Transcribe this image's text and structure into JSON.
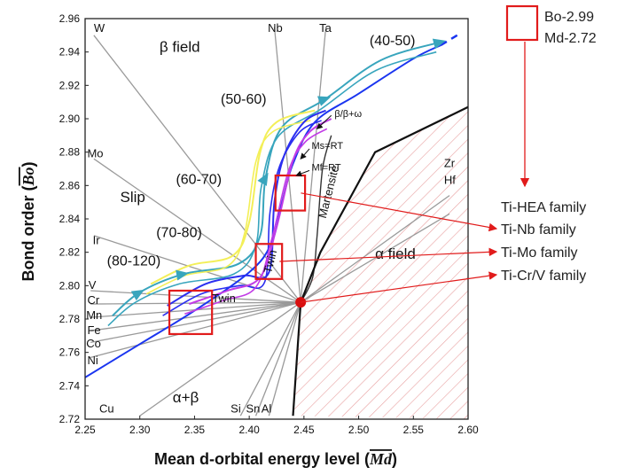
{
  "chart_data": {
    "type": "line",
    "xlabel_main": "Mean d-orbital energy level (",
    "xlabel_sym": "Md",
    "xlabel_close": ")",
    "ylabel_main": "Bond order (",
    "ylabel_sym": "Bo",
    "ylabel_close": ")",
    "xlim": [
      2.25,
      2.6
    ],
    "ylim": [
      2.72,
      2.96
    ],
    "x_ticks": [
      "2.25",
      "2.30",
      "2.35",
      "2.40",
      "2.45",
      "2.50",
      "2.55",
      "2.60"
    ],
    "y_ticks": [
      "2.72",
      "2.74",
      "2.76",
      "2.78",
      "2.80",
      "2.82",
      "2.84",
      "2.86",
      "2.88",
      "2.90",
      "2.92",
      "2.94",
      "2.96"
    ],
    "hub_point": {
      "x": 2.447,
      "y": 2.79
    },
    "element_lines": [
      {
        "name": "W",
        "x": 2.258,
        "y": 2.95
      },
      {
        "name": "Mo",
        "x": 2.258,
        "y": 2.876
      },
      {
        "name": "Ir",
        "x": 2.258,
        "y": 2.83
      },
      {
        "name": "V",
        "x": 2.255,
        "y": 2.797
      },
      {
        "name": "Cr",
        "x": 2.255,
        "y": 2.789
      },
      {
        "name": "Mn",
        "x": 2.255,
        "y": 2.781
      },
      {
        "name": "Fe",
        "x": 2.255,
        "y": 2.773
      },
      {
        "name": "Co",
        "x": 2.255,
        "y": 2.766
      },
      {
        "name": "Ni",
        "x": 2.255,
        "y": 2.757
      },
      {
        "name": "Cu",
        "x": 2.3,
        "y": 2.722
      },
      {
        "name": "Si",
        "x": 2.392,
        "y": 2.722
      },
      {
        "name": "Sn",
        "x": 2.406,
        "y": 2.722
      },
      {
        "name": "Al",
        "x": 2.418,
        "y": 2.722
      },
      {
        "name": "Nb",
        "x": 2.423,
        "y": 2.955
      },
      {
        "name": "Ta",
        "x": 2.47,
        "y": 2.955
      },
      {
        "name": "Zr",
        "x": 2.583,
        "y": 2.854
      },
      {
        "name": "Hf",
        "x": 2.583,
        "y": 2.843
      }
    ],
    "element_labels": [
      {
        "name": "W",
        "x": 2.258,
        "y": 2.952
      },
      {
        "name": "Mo",
        "x": 2.252,
        "y": 2.877
      },
      {
        "name": "Ir",
        "x": 2.257,
        "y": 2.825
      },
      {
        "name": "V",
        "x": 2.253,
        "y": 2.798
      },
      {
        "name": "Cr",
        "x": 2.252,
        "y": 2.789
      },
      {
        "name": "Mn",
        "x": 2.251,
        "y": 2.78
      },
      {
        "name": "Fe",
        "x": 2.252,
        "y": 2.771
      },
      {
        "name": "Co",
        "x": 2.251,
        "y": 2.763
      },
      {
        "name": "Ni",
        "x": 2.252,
        "y": 2.753
      },
      {
        "name": "Cu",
        "x": 2.263,
        "y": 2.724
      },
      {
        "name": "Si",
        "x": 2.383,
        "y": 2.724
      },
      {
        "name": "Sn",
        "x": 2.397,
        "y": 2.724
      },
      {
        "name": "Al",
        "x": 2.411,
        "y": 2.724
      },
      {
        "name": "Nb",
        "x": 2.417,
        "y": 2.952
      },
      {
        "name": "Ta",
        "x": 2.464,
        "y": 2.952
      },
      {
        "name": "Zr",
        "x": 2.578,
        "y": 2.871
      },
      {
        "name": "Hf",
        "x": 2.578,
        "y": 2.861
      }
    ],
    "beta_boundary": [
      [
        2.25,
        2.745
      ],
      [
        2.3,
        2.765
      ],
      [
        2.35,
        2.785
      ],
      [
        2.4,
        2.808
      ],
      [
        2.42,
        2.825
      ],
      [
        2.43,
        2.85
      ],
      [
        2.44,
        2.873
      ],
      [
        2.46,
        2.898
      ],
      [
        2.5,
        2.915
      ],
      [
        2.55,
        2.936
      ],
      [
        2.575,
        2.944
      ]
    ],
    "beta_boundary_dashed": [
      [
        2.575,
        2.944
      ],
      [
        2.59,
        2.95
      ]
    ],
    "martensite_curve": [
      [
        2.447,
        2.79
      ],
      [
        2.458,
        2.805
      ],
      [
        2.462,
        2.83
      ],
      [
        2.467,
        2.87
      ],
      [
        2.475,
        2.89
      ]
    ],
    "alpha_boundary": [
      [
        2.44,
        2.722
      ],
      [
        2.447,
        2.79
      ],
      [
        2.465,
        2.82
      ],
      [
        2.5,
        2.862
      ],
      [
        2.515,
        2.88
      ],
      [
        2.6,
        2.907
      ]
    ],
    "families": [
      {
        "name": "Ti-HEA family",
        "color": "#38a5bd",
        "points": [
          [
            2.275,
            2.782
          ],
          [
            2.3,
            2.796
          ],
          [
            2.34,
            2.807
          ],
          [
            2.39,
            2.813
          ],
          [
            2.41,
            2.83
          ],
          [
            2.415,
            2.865
          ],
          [
            2.43,
            2.895
          ],
          [
            2.47,
            2.912
          ],
          [
            2.52,
            2.935
          ],
          [
            2.575,
            2.946
          ]
        ]
      },
      {
        "name": "Ti-Nb family",
        "color": "#f3ef58",
        "points": [
          [
            2.31,
            2.801
          ],
          [
            2.345,
            2.812
          ],
          [
            2.385,
            2.818
          ],
          [
            2.4,
            2.838
          ],
          [
            2.41,
            2.88
          ],
          [
            2.425,
            2.898
          ],
          [
            2.46,
            2.905
          ]
        ]
      },
      {
        "name": "Ti-Mo family",
        "color": "#2b2ef0",
        "points": [
          [
            2.325,
            2.788
          ],
          [
            2.36,
            2.801
          ],
          [
            2.395,
            2.806
          ],
          [
            2.418,
            2.808
          ],
          [
            2.423,
            2.85
          ],
          [
            2.432,
            2.878
          ],
          [
            2.45,
            2.898
          ],
          [
            2.47,
            2.905
          ]
        ]
      },
      {
        "name": "Ti-Cr/V family",
        "color": "#c23ce6",
        "points": [
          [
            2.345,
            2.789
          ],
          [
            2.38,
            2.797
          ],
          [
            2.41,
            2.805
          ],
          [
            2.425,
            2.835
          ],
          [
            2.44,
            2.875
          ],
          [
            2.455,
            2.892
          ],
          [
            2.475,
            2.9
          ]
        ]
      }
    ],
    "range_labels": [
      {
        "text": "(40-50)",
        "x": 2.51,
        "y": 2.944
      },
      {
        "text": "(50-60)",
        "x": 2.374,
        "y": 2.909
      },
      {
        "text": "(60-70)",
        "x": 2.333,
        "y": 2.861
      },
      {
        "text": "(70-80)",
        "x": 2.315,
        "y": 2.829
      },
      {
        "text": "(80-120)",
        "x": 2.27,
        "y": 2.812
      }
    ],
    "region_labels": [
      {
        "text": "β field",
        "x": 2.318,
        "y": 2.94
      },
      {
        "text": "Slip",
        "x": 2.282,
        "y": 2.85
      },
      {
        "text": "α field",
        "x": 2.515,
        "y": 2.816
      },
      {
        "text": "α+β",
        "x": 2.33,
        "y": 2.73
      }
    ],
    "annotations": [
      {
        "text": "β/β+ω",
        "x": 2.478,
        "y": 2.901
      },
      {
        "text": "Ms=RT",
        "x": 2.457,
        "y": 2.882
      },
      {
        "text": "Mf=RT",
        "x": 2.457,
        "y": 2.869
      },
      {
        "text": "Martensite",
        "x": 2.47,
        "y": 2.84,
        "rotate": -76
      },
      {
        "text": "Twin",
        "x": 2.42,
        "y": 2.807,
        "rotate": -76
      },
      {
        "text": "Twin",
        "x": 2.366,
        "y": 2.79,
        "rotate": 0
      }
    ],
    "highlight_boxes": [
      {
        "x1": 2.424,
        "y1": 2.866,
        "x2": 2.451,
        "y2": 2.845
      },
      {
        "x1": 2.406,
        "y1": 2.825,
        "x2": 2.43,
        "y2": 2.804
      },
      {
        "x1": 2.327,
        "y1": 2.797,
        "x2": 2.366,
        "y2": 2.771
      }
    ],
    "outside_box_label_bo": "Bo-2.99",
    "outside_box_label_md": "Md-2.72"
  }
}
